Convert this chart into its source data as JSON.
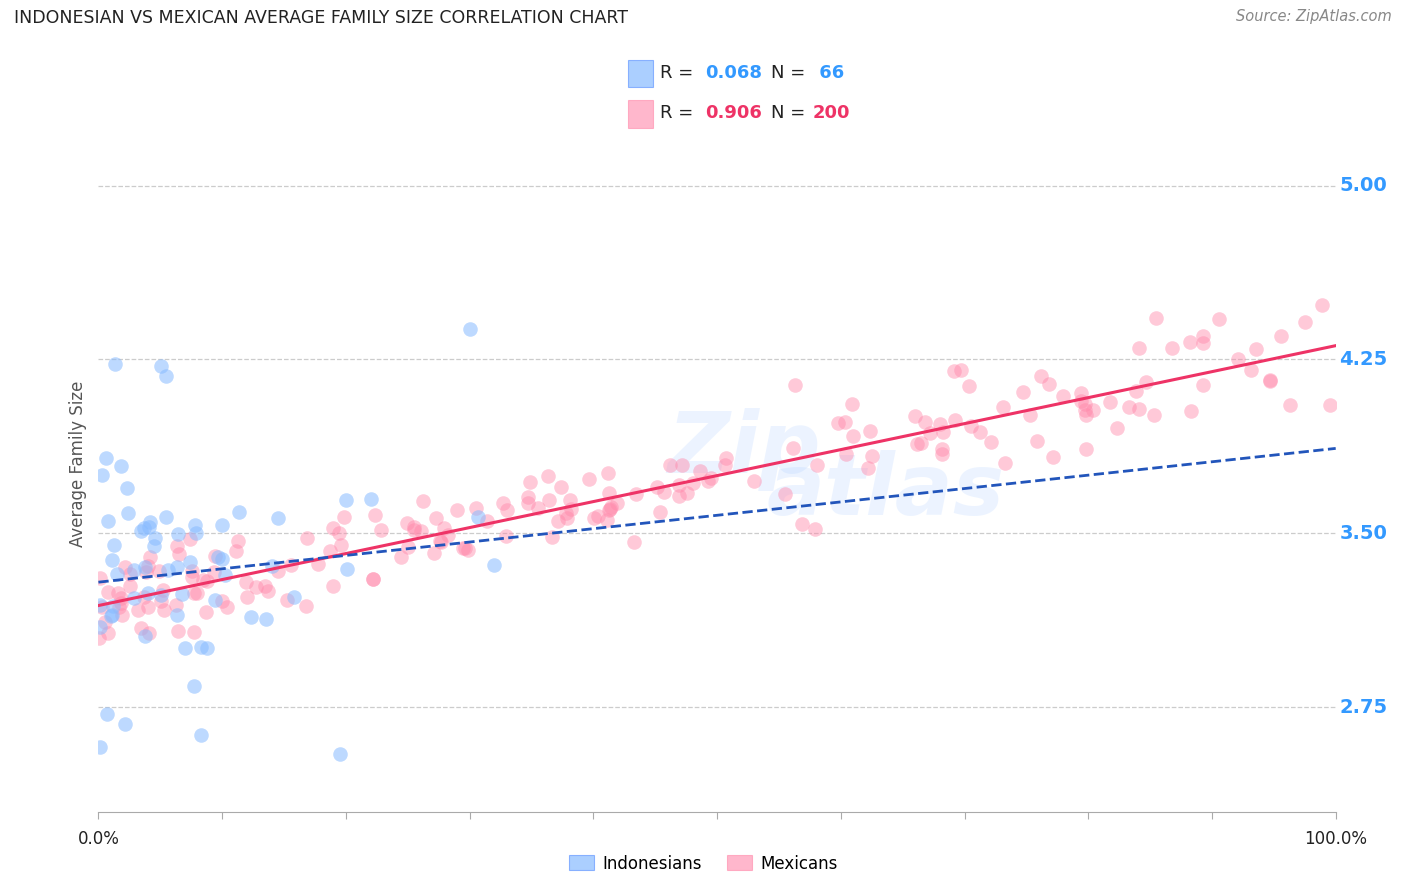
{
  "title": "INDONESIAN VS MEXICAN AVERAGE FAMILY SIZE CORRELATION CHART",
  "source": "Source: ZipAtlas.com",
  "ylabel": "Average Family Size",
  "yticks": [
    2.75,
    3.5,
    4.25,
    5.0
  ],
  "ytick_color": "#3399ff",
  "watermark_line1": "Zip",
  "watermark_line2": "atlas",
  "blue_color": "#88bbff",
  "pink_color": "#ff88aa",
  "blue_line_color": "#2255bb",
  "pink_line_color": "#ee3366",
  "background_color": "#ffffff",
  "grid_color": "#cccccc",
  "title_color": "#222222",
  "axis_label_color": "#555555",
  "blue_R": 0.068,
  "blue_N": 66,
  "pink_R": 0.906,
  "pink_N": 200,
  "ymin": 2.3,
  "ymax": 5.3,
  "xmin": 0.0,
  "xmax": 1.0
}
